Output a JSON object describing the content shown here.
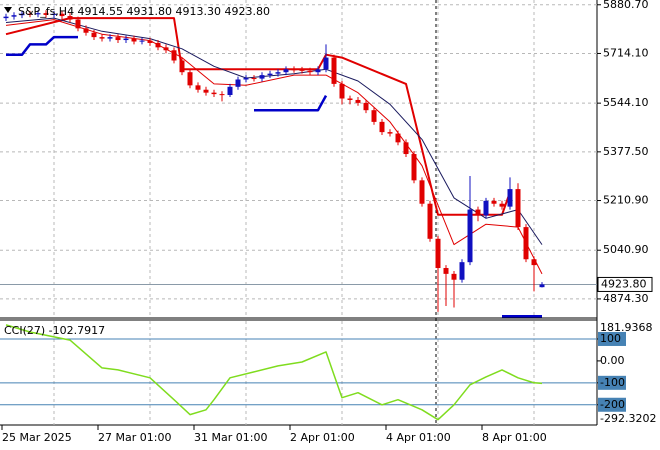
{
  "chart_data": [
    {
      "type": "candlestick",
      "title": "S&P_fs,H4  4914.55 4931.80 4913.30 4923.80",
      "categories": [
        "25 Mar 2025",
        null,
        null,
        null,
        null,
        null,
        null,
        null,
        null,
        null,
        null,
        null,
        "27 Mar 01:00",
        null,
        null,
        null,
        null,
        null,
        null,
        null,
        null,
        null,
        null,
        null,
        "31 Mar 01:00",
        null,
        null,
        null,
        null,
        null,
        null,
        null,
        null,
        null,
        null,
        null,
        "2 Apr 01:00",
        null,
        null,
        null,
        null,
        null,
        null,
        null,
        null,
        null,
        null,
        null,
        "4 Apr 01:00",
        null,
        null,
        null,
        null,
        null,
        null,
        null,
        null,
        null,
        null,
        null,
        "8 Apr 01:00",
        null,
        null,
        null,
        null,
        null,
        null,
        null
      ],
      "open": [
        5835,
        5840,
        5845,
        5850,
        5848,
        5852,
        5846,
        5850,
        5842,
        5830,
        5800,
        5785,
        5770,
        5765,
        5770,
        5760,
        5765,
        5755,
        5758,
        5750,
        5735,
        5725,
        5690,
        5650,
        5605,
        5590,
        5580,
        5575,
        5572,
        5600,
        5625,
        5630,
        5628,
        5640,
        5645,
        5650,
        5660,
        5658,
        5655,
        5650,
        5660,
        5700,
        5610,
        5560,
        5555,
        5545,
        5520,
        5480,
        5445,
        5440,
        5410,
        5370,
        5280,
        5200,
        5080,
        4980,
        4960,
        4940,
        5000,
        5180,
        5160,
        5210,
        5200,
        5190,
        5250,
        5120,
        5010,
        4914.55
      ],
      "high": [
        5850,
        5855,
        5860,
        5860,
        5862,
        5862,
        5860,
        5860,
        5852,
        5840,
        5810,
        5795,
        5780,
        5780,
        5780,
        5775,
        5775,
        5768,
        5768,
        5760,
        5745,
        5735,
        5700,
        5660,
        5615,
        5600,
        5590,
        5585,
        5610,
        5635,
        5640,
        5640,
        5650,
        5655,
        5660,
        5670,
        5670,
        5668,
        5665,
        5670,
        5745,
        5710,
        5620,
        5570,
        5565,
        5555,
        5530,
        5490,
        5455,
        5450,
        5420,
        5380,
        5290,
        5210,
        5090,
        4990,
        4970,
        5010,
        5295,
        5190,
        5220,
        5220,
        5210,
        5290,
        5270,
        5130,
        5020,
        4931.8
      ],
      "low": [
        5825,
        5830,
        5835,
        5838,
        5838,
        5836,
        5836,
        5832,
        5820,
        5790,
        5775,
        5760,
        5755,
        5755,
        5750,
        5750,
        5745,
        5745,
        5740,
        5725,
        5715,
        5680,
        5640,
        5595,
        5580,
        5570,
        5565,
        5550,
        5565,
        5590,
        5615,
        5618,
        5618,
        5630,
        5635,
        5640,
        5648,
        5645,
        5640,
        5640,
        5650,
        5600,
        5540,
        5540,
        5535,
        5510,
        5470,
        5435,
        5430,
        5400,
        5360,
        5270,
        5190,
        5070,
        4830,
        4850,
        4845,
        4930,
        4990,
        5140,
        5150,
        5190,
        5180,
        5180,
        5110,
        5000,
        4900,
        4913.3
      ],
      "close": [
        5840,
        5845,
        5850,
        5848,
        5852,
        5846,
        5850,
        5842,
        5830,
        5800,
        5785,
        5770,
        5765,
        5770,
        5760,
        5765,
        5755,
        5758,
        5750,
        5735,
        5725,
        5690,
        5650,
        5605,
        5590,
        5580,
        5575,
        5572,
        5600,
        5625,
        5630,
        5628,
        5640,
        5645,
        5650,
        5660,
        5658,
        5655,
        5650,
        5660,
        5700,
        5610,
        5560,
        5555,
        5545,
        5520,
        5480,
        5445,
        5440,
        5410,
        5370,
        5280,
        5200,
        5080,
        4980,
        4960,
        4940,
        5000,
        5180,
        5160,
        5210,
        5200,
        5190,
        5250,
        5120,
        5010,
        4990,
        4923.8
      ],
      "up_color": "#1010c0",
      "down_color": "#e00000",
      "lines": [
        {
          "color": "#e00000",
          "width": 2,
          "x": [
            0,
            8,
            21,
            22,
            39,
            40,
            42,
            50,
            54,
            62,
            63
          ],
          "values": [
            5780,
            5835,
            5835,
            5660,
            5660,
            5710,
            5700,
            5610,
            5162,
            5162,
            5240
          ]
        },
        {
          "color": "#0000c8",
          "width": 2.5,
          "x": [
            0,
            2,
            3,
            5,
            6,
            9,
            20,
            31,
            39,
            40,
            50,
            62,
            67
          ],
          "values": [
            5710,
            5710,
            5745,
            5745,
            5770,
            5770,
            null,
            5520,
            5520,
            5570,
            null,
            4815,
            4815
          ]
        },
        {
          "color": "#1a1a5e",
          "width": 1,
          "x": [
            0,
            6,
            12,
            18,
            22,
            26,
            30,
            36,
            40,
            44,
            48,
            52,
            56,
            60,
            64,
            67
          ],
          "values": [
            5820,
            5835,
            5790,
            5765,
            5730,
            5670,
            5630,
            5645,
            5660,
            5620,
            5540,
            5420,
            5220,
            5150,
            5180,
            5060
          ]
        },
        {
          "color": "#e00000",
          "width": 1,
          "x": [
            0,
            6,
            12,
            18,
            22,
            26,
            30,
            36,
            40,
            44,
            48,
            52,
            56,
            60,
            64,
            67
          ],
          "values": [
            5810,
            5830,
            5780,
            5758,
            5700,
            5610,
            5605,
            5640,
            5640,
            5580,
            5480,
            5330,
            5060,
            5130,
            5120,
            4960
          ]
        }
      ],
      "price_line": {
        "value": 4923.8,
        "label": "4923.80"
      },
      "ylim": [
        4809,
        5897
      ],
      "yticks": [
        {
          "value": 5880.7,
          "label": "5880.70"
        },
        {
          "value": 5714.1,
          "label": "5714.10"
        },
        {
          "value": 5544.1,
          "label": "5544.10"
        },
        {
          "value": 5377.5,
          "label": "5377.50"
        },
        {
          "value": 5210.9,
          "label": "5210.90"
        },
        {
          "value": 5040.9,
          "label": "5040.90"
        },
        {
          "value": 4874.3,
          "label": "4874.30"
        }
      ],
      "grid": true
    },
    {
      "type": "line",
      "title": "CCI(27) -102.7917",
      "color": "#7fdc1e",
      "x": [
        0,
        3,
        8,
        12,
        14,
        18,
        21,
        23,
        25,
        26,
        28,
        31,
        34,
        37,
        40,
        41,
        42,
        44,
        47,
        49,
        52,
        54,
        56,
        58,
        60,
        62,
        64,
        66,
        67
      ],
      "values": [
        164,
        132,
        95,
        -32,
        -41,
        -77,
        -177,
        -245,
        -223,
        -177,
        -77,
        -50,
        -23,
        -5,
        41,
        -64,
        -168,
        -145,
        -200,
        -177,
        -223,
        -268,
        -200,
        -109,
        -73,
        -41,
        -77,
        -100,
        -102.7917
      ],
      "ylim": [
        -292.3202,
        181.9368
      ],
      "yticks": [
        100,
        {
          "value": 0,
          "label": "0.00"
        },
        -100,
        -200
      ],
      "levels": [
        100,
        -100,
        -200
      ],
      "level_color": "#4682b4"
    }
  ]
}
